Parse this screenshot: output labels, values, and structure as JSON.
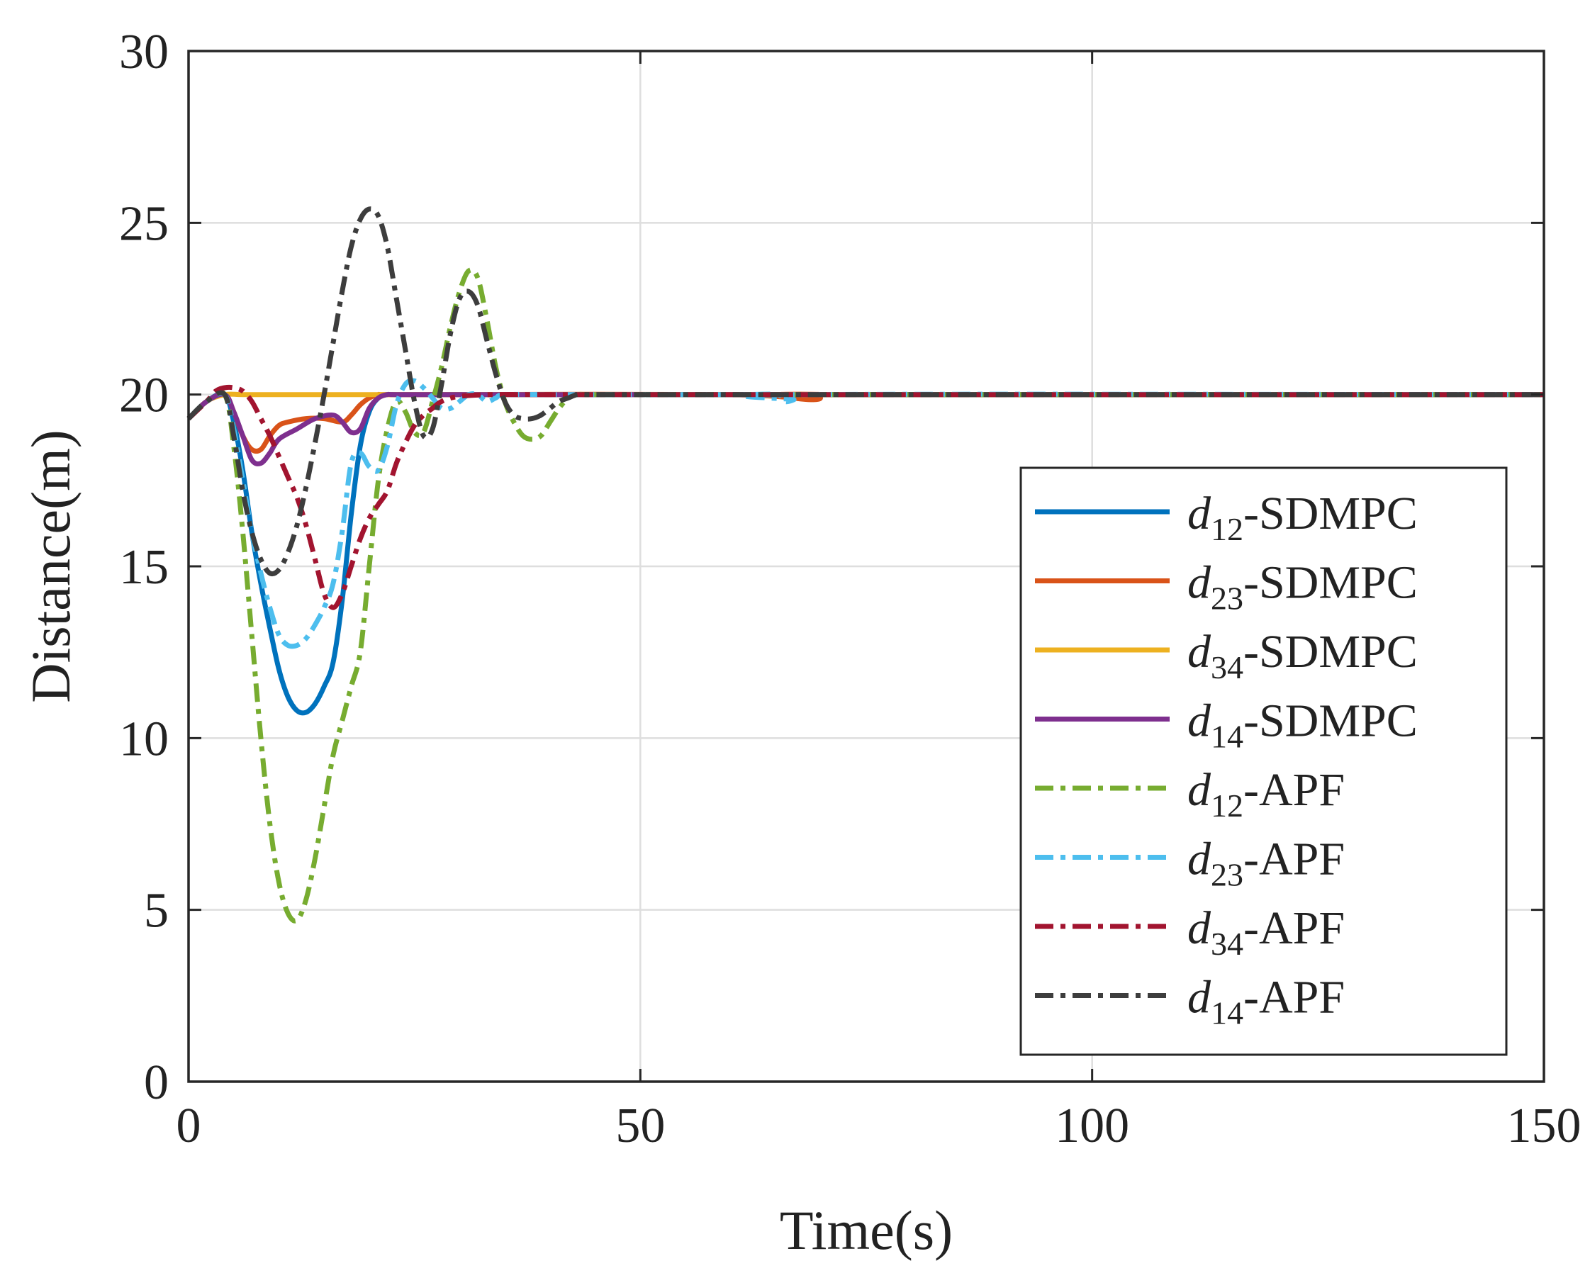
{
  "chart_data": {
    "type": "line",
    "title": "",
    "xlabel": "Time(s)",
    "ylabel": "Distance(m)",
    "xlim": [
      0,
      150
    ],
    "ylim": [
      0,
      30
    ],
    "xticks": [
      0,
      50,
      100,
      150
    ],
    "yticks": [
      0,
      5,
      10,
      15,
      20,
      25,
      30
    ],
    "xtick_labels": [
      "0",
      "50",
      "100",
      "150"
    ],
    "ytick_labels": [
      "0",
      "5",
      "10",
      "15",
      "20",
      "25",
      "30"
    ],
    "grid": true,
    "legend_position": "right",
    "series": [
      {
        "name": "d12-SDMPC",
        "symbol": "d",
        "subscript": "12",
        "method": "SDMPC",
        "color": "#0072BD",
        "style": "solid",
        "x": [
          0,
          2,
          4,
          5,
          6,
          7,
          8,
          9,
          10,
          11,
          12,
          13,
          14,
          15,
          16,
          17,
          18,
          19,
          20,
          21,
          22,
          23,
          30,
          60,
          150
        ],
        "y": [
          19.3,
          19.8,
          20.0,
          19.2,
          17.8,
          16.0,
          14.5,
          13.2,
          12.0,
          11.2,
          10.8,
          10.75,
          11.0,
          11.5,
          12.2,
          14.0,
          16.5,
          18.5,
          19.5,
          19.9,
          20.0,
          20.0,
          20.0,
          20.0,
          20.0
        ]
      },
      {
        "name": "d23-SDMPC",
        "symbol": "d",
        "subscript": "23",
        "method": "SDMPC",
        "color": "#D95319",
        "style": "solid",
        "x": [
          0,
          2,
          4,
          5,
          6,
          7,
          8,
          9,
          10,
          11,
          13,
          15,
          17,
          18,
          19,
          20,
          21,
          22,
          30,
          60,
          69,
          70,
          72,
          150
        ],
        "y": [
          19.3,
          19.8,
          20.0,
          19.5,
          18.8,
          18.4,
          18.4,
          18.8,
          19.1,
          19.2,
          19.3,
          19.3,
          19.2,
          19.4,
          19.7,
          19.9,
          20.0,
          20.0,
          20.0,
          20.0,
          19.85,
          20.0,
          20.0,
          20.0
        ]
      },
      {
        "name": "d34-SDMPC",
        "symbol": "d",
        "subscript": "34",
        "method": "SDMPC",
        "color": "#EDB120",
        "style": "solid",
        "x": [
          0,
          2,
          4,
          6,
          10,
          20,
          40,
          80,
          150
        ],
        "y": [
          19.3,
          19.8,
          20.0,
          20.0,
          20.0,
          20.0,
          20.0,
          20.0,
          20.0
        ]
      },
      {
        "name": "d14-SDMPC",
        "symbol": "d",
        "subscript": "14",
        "method": "SDMPC",
        "color": "#7E2F8E",
        "style": "solid",
        "x": [
          0,
          2,
          4,
          5,
          6,
          7,
          8,
          9,
          10,
          12,
          14,
          16,
          17,
          18,
          19,
          20,
          21,
          22,
          23,
          30,
          60,
          150
        ],
        "y": [
          19.3,
          19.8,
          20.0,
          19.5,
          18.8,
          18.1,
          18.0,
          18.3,
          18.7,
          19.0,
          19.3,
          19.4,
          19.2,
          18.9,
          19.0,
          19.6,
          19.9,
          20.0,
          20.0,
          20.0,
          20.0,
          20.0
        ]
      },
      {
        "name": "d12-APF",
        "symbol": "d",
        "subscript": "12",
        "method": "APF",
        "color": "#77AC30",
        "style": "dashdot",
        "x": [
          0,
          2,
          4,
          5,
          6,
          7,
          8,
          9,
          10,
          11,
          12,
          13,
          14,
          15,
          16,
          17,
          18,
          19,
          20,
          21,
          22,
          23,
          24,
          25,
          26,
          27,
          28,
          29,
          30,
          31,
          32,
          33,
          34,
          35,
          36,
          37,
          38,
          39,
          40,
          41,
          42,
          43,
          44,
          45,
          46,
          60,
          150
        ],
        "y": [
          19.3,
          19.8,
          20.0,
          18.5,
          16.0,
          13.0,
          10.0,
          7.5,
          5.8,
          4.9,
          4.7,
          5.3,
          6.5,
          8.0,
          9.5,
          10.5,
          11.5,
          12.5,
          15.0,
          17.5,
          19.0,
          19.8,
          19.5,
          18.9,
          18.9,
          19.8,
          20.8,
          22.0,
          23.0,
          23.6,
          23.4,
          22.2,
          20.8,
          19.8,
          19.2,
          18.8,
          18.7,
          18.8,
          19.2,
          19.6,
          19.9,
          20.0,
          20.0,
          20.0,
          20.0,
          20.0,
          20.0
        ]
      },
      {
        "name": "d23-APF",
        "symbol": "d",
        "subscript": "23",
        "method": "APF",
        "color": "#4DBEEE",
        "style": "dashdot",
        "x": [
          0,
          2,
          4,
          5,
          6,
          7,
          8,
          9,
          10,
          11,
          12,
          13,
          14,
          15,
          16,
          17,
          18,
          19,
          20,
          21,
          22,
          23,
          24,
          25,
          26,
          27,
          28,
          29,
          30,
          31,
          32,
          33,
          34,
          35,
          40,
          60,
          65,
          66,
          67,
          68,
          150
        ],
        "y": [
          19.3,
          19.8,
          20.0,
          19.0,
          17.5,
          16.0,
          14.8,
          13.8,
          13.0,
          12.7,
          12.7,
          12.9,
          13.3,
          13.8,
          14.5,
          16.0,
          18.0,
          18.3,
          17.9,
          17.8,
          18.5,
          19.7,
          20.3,
          20.4,
          20.2,
          19.9,
          19.6,
          19.6,
          19.8,
          20.0,
          20.0,
          19.8,
          19.9,
          20.0,
          20.0,
          20.0,
          20.0,
          19.8,
          19.85,
          20.0,
          20.0
        ]
      },
      {
        "name": "d34-APF",
        "symbol": "d",
        "subscript": "34",
        "method": "APF",
        "color": "#A2142F",
        "style": "dashdot",
        "x": [
          0,
          2,
          3,
          4,
          5,
          6,
          7,
          8,
          9,
          10,
          11,
          12,
          13,
          14,
          15,
          16,
          17,
          18,
          19,
          20,
          21,
          22,
          23,
          24,
          25,
          26,
          27,
          28,
          30,
          34,
          40,
          60,
          150
        ],
        "y": [
          19.3,
          19.8,
          20.1,
          20.2,
          20.2,
          20.1,
          19.8,
          19.3,
          18.8,
          18.2,
          17.6,
          17.0,
          16.2,
          15.2,
          14.2,
          13.8,
          14.2,
          15.0,
          15.8,
          16.4,
          16.8,
          17.2,
          18.0,
          18.6,
          19.1,
          19.4,
          19.6,
          19.8,
          19.95,
          20.0,
          20.0,
          20.0,
          20.0
        ]
      },
      {
        "name": "d14-APF",
        "symbol": "d",
        "subscript": "14",
        "method": "APF",
        "color": "#3D3D3D",
        "style": "dashdot",
        "x": [
          0,
          2,
          4,
          5,
          6,
          7,
          8,
          9,
          10,
          11,
          12,
          13,
          14,
          15,
          16,
          17,
          18,
          19,
          20,
          21,
          22,
          23,
          24,
          25,
          26,
          27,
          28,
          29,
          30,
          31,
          32,
          33,
          34,
          35,
          36,
          37,
          38,
          39,
          40,
          41,
          42,
          43,
          44,
          45,
          50,
          60,
          150
        ],
        "y": [
          19.3,
          19.8,
          20.0,
          18.8,
          17.2,
          16.0,
          15.2,
          14.8,
          14.9,
          15.4,
          16.2,
          17.3,
          18.6,
          20.0,
          21.5,
          23.0,
          24.3,
          25.1,
          25.4,
          25.2,
          24.3,
          22.8,
          21.3,
          19.8,
          18.8,
          19.0,
          20.3,
          21.8,
          22.8,
          23.0,
          22.6,
          21.6,
          20.6,
          19.8,
          19.4,
          19.3,
          19.3,
          19.4,
          19.6,
          19.8,
          19.9,
          20.0,
          20.0,
          20.0,
          20.0,
          20.0,
          20.0
        ]
      }
    ]
  }
}
